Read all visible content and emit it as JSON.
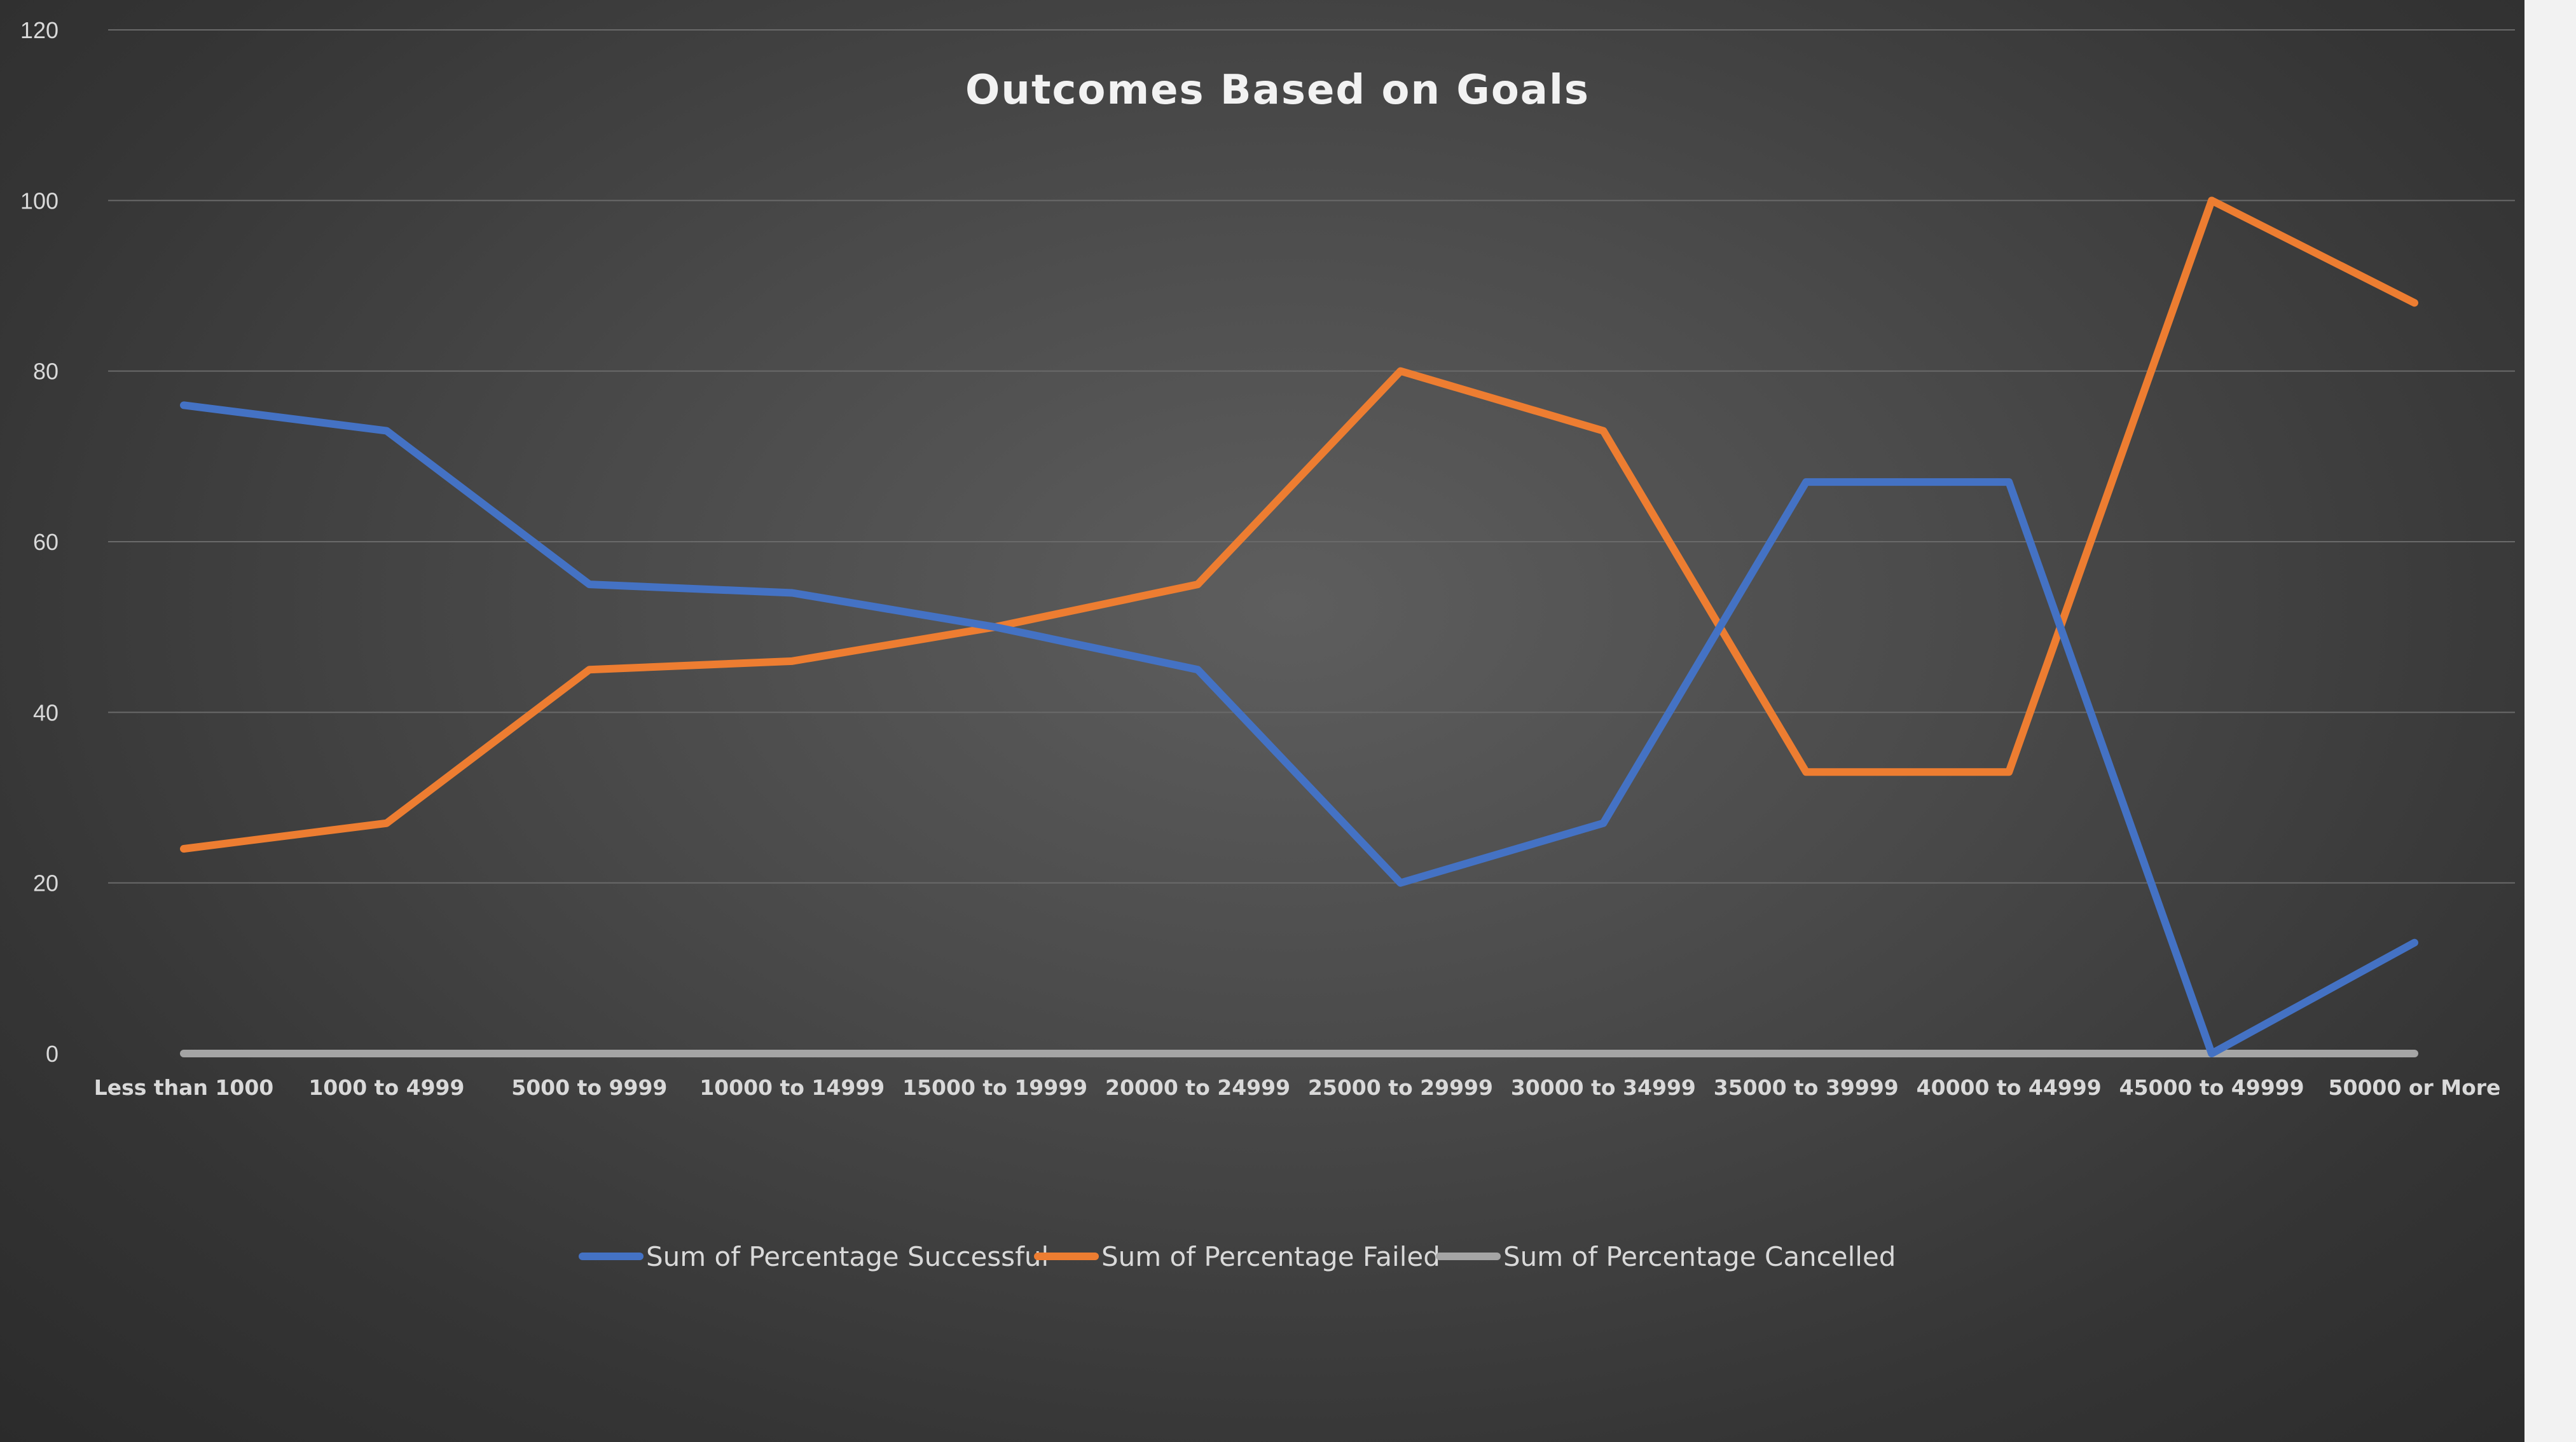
{
  "chart_data": {
    "type": "line",
    "title": "Outcomes Based on Goals",
    "xlabel": "",
    "ylabel": "",
    "ylim": [
      0,
      120
    ],
    "yticks": [
      "0",
      "20",
      "40",
      "60",
      "80",
      "100",
      "120"
    ],
    "grid": true,
    "legend_position": "bottom",
    "categories": [
      "Less than 1000",
      "1000 to 4999",
      "5000 to 9999",
      "10000 to 14999",
      "15000 to 19999",
      "20000 to 24999",
      "25000 to 29999",
      "30000 to 34999",
      "35000 to 39999",
      "40000 to 44999",
      "45000 to 49999",
      "50000 or More"
    ],
    "series": [
      {
        "name": "Sum of Percentage Successful",
        "color": "#4472c4",
        "values": [
          76,
          73,
          55,
          54,
          50,
          45,
          20,
          27,
          67,
          67,
          0,
          13
        ]
      },
      {
        "name": "Sum of Percentage Failed",
        "color": "#ed7d31",
        "values": [
          24,
          27,
          45,
          46,
          50,
          55,
          80,
          73,
          33,
          33,
          100,
          88
        ]
      },
      {
        "name": "Sum of Percentage Cancelled",
        "color": "#a5a5a5",
        "values": [
          0,
          0,
          0,
          0,
          0,
          0,
          0,
          0,
          0,
          0,
          0,
          0
        ]
      }
    ]
  }
}
